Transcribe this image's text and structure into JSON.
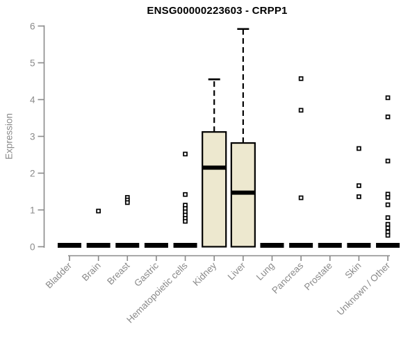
{
  "chart_data": {
    "type": "boxplot",
    "title": "ENSG00000223603 - CRPP1",
    "ylabel": "Expression",
    "xlabel": "",
    "ylim": [
      0,
      6
    ],
    "yticks": [
      0,
      1,
      2,
      3,
      4,
      5,
      6
    ],
    "grid": false,
    "legend_position": "none",
    "categories": [
      "Bladder",
      "Brain",
      "Breast",
      "Gastric",
      "Hematopoietic cells",
      "Kidney",
      "Liver",
      "Lung",
      "Pancreas",
      "Prostate",
      "Skin",
      "Unknown / Other"
    ],
    "boxes": [
      {
        "category": "Bladder",
        "q1": 0,
        "median": 0,
        "q3": 0,
        "whisker_low": 0,
        "whisker_high": 0,
        "outliers": []
      },
      {
        "category": "Brain",
        "q1": 0,
        "median": 0,
        "q3": 0,
        "whisker_low": 0,
        "whisker_high": 0,
        "outliers": [
          0.97
        ]
      },
      {
        "category": "Breast",
        "q1": 0,
        "median": 0,
        "q3": 0,
        "whisker_low": 0,
        "whisker_high": 0,
        "outliers": [
          1.34,
          1.27,
          1.2
        ]
      },
      {
        "category": "Gastric",
        "q1": 0,
        "median": 0,
        "q3": 0,
        "whisker_low": 0,
        "whisker_high": 0,
        "outliers": []
      },
      {
        "category": "Hematopoietic cells",
        "q1": 0,
        "median": 0,
        "q3": 0,
        "whisker_low": 0,
        "whisker_high": 0,
        "outliers": [
          2.52,
          1.42,
          1.13,
          1.04,
          0.95,
          0.86,
          0.77,
          0.69
        ]
      },
      {
        "category": "Kidney",
        "q1": 0,
        "median": 2.15,
        "q3": 3.12,
        "whisker_low": 0,
        "whisker_high": 4.55,
        "outliers": []
      },
      {
        "category": "Liver",
        "q1": 0,
        "median": 1.47,
        "q3": 2.82,
        "whisker_low": 0,
        "whisker_high": 5.92,
        "outliers": []
      },
      {
        "category": "Lung",
        "q1": 0,
        "median": 0,
        "q3": 0,
        "whisker_low": 0,
        "whisker_high": 0,
        "outliers": []
      },
      {
        "category": "Pancreas",
        "q1": 0,
        "median": 0,
        "q3": 0,
        "whisker_low": 0,
        "whisker_high": 0,
        "outliers": [
          4.57,
          3.71,
          1.33
        ]
      },
      {
        "category": "Prostate",
        "q1": 0,
        "median": 0,
        "q3": 0,
        "whisker_low": 0,
        "whisker_high": 0,
        "outliers": []
      },
      {
        "category": "Skin",
        "q1": 0,
        "median": 0,
        "q3": 0,
        "whisker_low": 0,
        "whisker_high": 0,
        "outliers": [
          2.67,
          1.66,
          1.36
        ]
      },
      {
        "category": "Unknown / Other",
        "q1": 0,
        "median": 0,
        "q3": 0,
        "whisker_low": 0,
        "whisker_high": 0,
        "outliers": [
          4.05,
          3.53,
          2.33,
          1.43,
          1.34,
          1.14,
          0.79,
          0.61,
          0.51,
          0.4,
          0.31
        ]
      }
    ],
    "colors": {
      "box_fill": "#EDE8CF",
      "box_border": "#000000",
      "median": "#000000",
      "whisker": "#000000",
      "outlier_stroke": "#000000",
      "outlier_fill": "#FFFFFF",
      "axis": "#898989",
      "tick_label": "#8A8A8A",
      "title": "#000000",
      "background": "#FFFFFF"
    }
  }
}
